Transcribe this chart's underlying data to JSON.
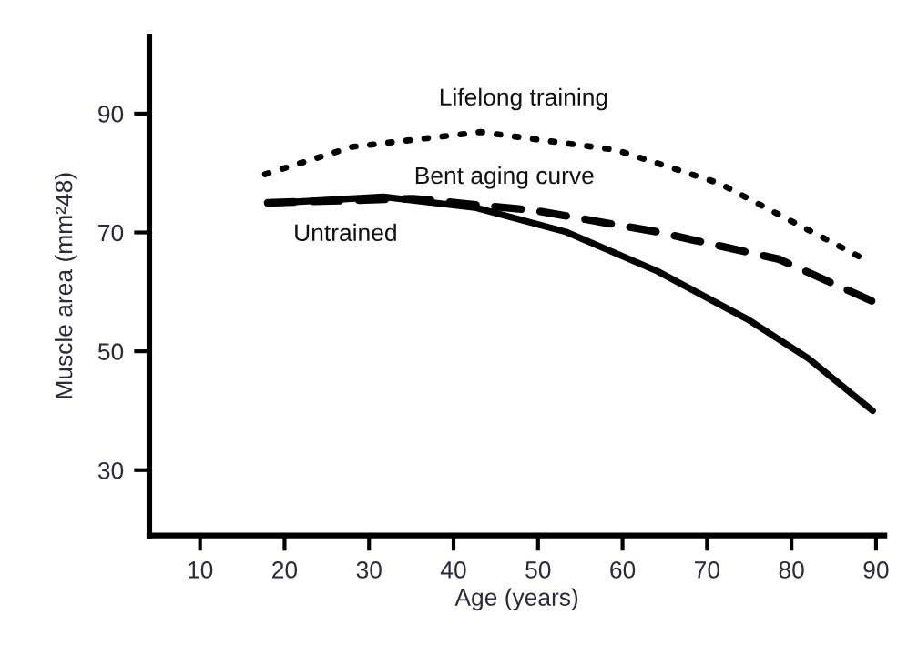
{
  "chart_data": {
    "type": "line",
    "xlabel": "Age (years)",
    "ylabel": "Muscle area (mm²48)",
    "xlim": [
      4,
      91
    ],
    "ylim": [
      19,
      103
    ],
    "xticks": [
      10,
      20,
      30,
      40,
      50,
      60,
      70,
      80,
      90
    ],
    "yticks": [
      30,
      50,
      70,
      90
    ],
    "grid": false,
    "legend": false,
    "marker": "none",
    "series": [
      {
        "name": "Lifelong training",
        "color": "#000000",
        "line_style": "dotted",
        "x": [
          17.7,
          28,
          43.2,
          59.2,
          71.4,
          88.6
        ],
        "values": [
          79.8,
          84.4,
          86.9,
          83.9,
          78.3,
          65.5
        ]
      },
      {
        "name": "Bent aging curve",
        "color": "#000000",
        "line_style": "dashed",
        "x": [
          18,
          35.2,
          49.6,
          64.1,
          78.5,
          89.6
        ],
        "values": [
          75,
          75.7,
          73.7,
          70.1,
          65.5,
          58.4
        ]
      },
      {
        "name": "Untrained",
        "color": "#000000",
        "line_style": "solid",
        "x": [
          18,
          31.7,
          42.5,
          53.3,
          64.1,
          74.9,
          82,
          89.6
        ],
        "values": [
          74.9,
          76,
          74.2,
          70.1,
          63.5,
          55.3,
          48.8,
          40
        ]
      }
    ]
  }
}
